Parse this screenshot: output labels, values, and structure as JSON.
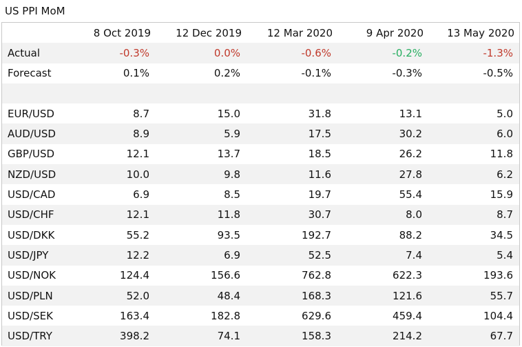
{
  "title": "US PPI MoM",
  "columns": [
    "8 Oct 2019",
    "12 Dec 2019",
    "12 Mar 2020",
    "9 Apr 2020",
    "13 May 2020"
  ],
  "actual": {
    "label": "Actual",
    "values": [
      "-0.3%",
      "0.0%",
      "-0.6%",
      "-0.2%",
      "-1.3%"
    ],
    "colors": [
      "#c0392b",
      "#c0392b",
      "#c0392b",
      "#27ae60",
      "#c0392b"
    ]
  },
  "forecast": {
    "label": "Forecast",
    "values": [
      "0.1%",
      "0.2%",
      "-0.1%",
      "-0.3%",
      "-0.5%"
    ]
  },
  "pairs": [
    {
      "label": "EUR/USD",
      "values": [
        "8.7",
        "15.0",
        "31.8",
        "13.1",
        "5.0"
      ]
    },
    {
      "label": "AUD/USD",
      "values": [
        "8.9",
        "5.9",
        "17.5",
        "30.2",
        "6.0"
      ]
    },
    {
      "label": "GBP/USD",
      "values": [
        "12.1",
        "13.7",
        "18.5",
        "26.2",
        "11.8"
      ]
    },
    {
      "label": "NZD/USD",
      "values": [
        "10.0",
        "9.8",
        "11.6",
        "27.8",
        "6.2"
      ]
    },
    {
      "label": "USD/CAD",
      "values": [
        "6.9",
        "8.5",
        "19.7",
        "55.4",
        "15.9"
      ]
    },
    {
      "label": "USD/CHF",
      "values": [
        "12.1",
        "11.8",
        "30.7",
        "8.0",
        "8.7"
      ]
    },
    {
      "label": "USD/DKK",
      "values": [
        "55.2",
        "93.5",
        "192.7",
        "88.2",
        "34.5"
      ]
    },
    {
      "label": "USD/JPY",
      "values": [
        "12.2",
        "6.9",
        "52.5",
        "7.4",
        "5.4"
      ]
    },
    {
      "label": "USD/NOK",
      "values": [
        "124.4",
        "156.6",
        "762.8",
        "622.3",
        "193.6"
      ]
    },
    {
      "label": "USD/PLN",
      "values": [
        "52.0",
        "48.4",
        "168.3",
        "121.6",
        "55.7"
      ]
    },
    {
      "label": "USD/SEK",
      "values": [
        "163.4",
        "182.8",
        "629.6",
        "459.4",
        "104.4"
      ]
    },
    {
      "label": "USD/TRY",
      "values": [
        "398.2",
        "74.1",
        "158.3",
        "214.2",
        "67.7"
      ]
    }
  ]
}
